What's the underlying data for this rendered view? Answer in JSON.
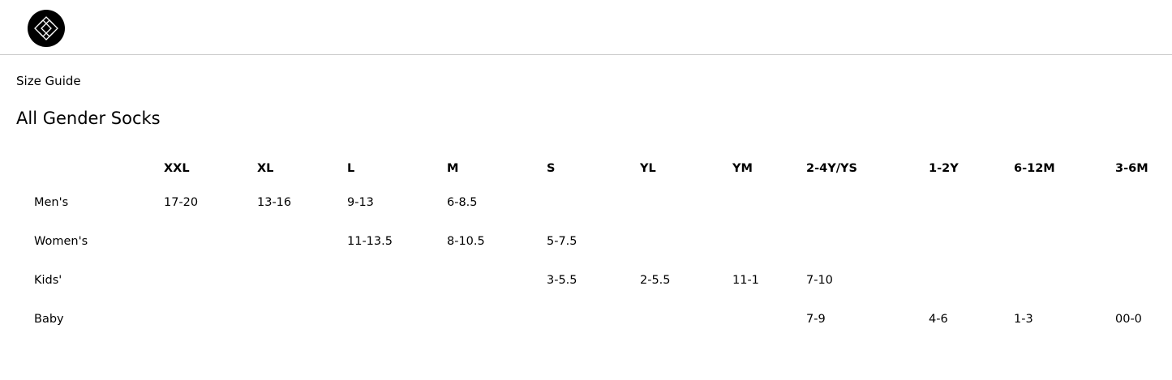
{
  "breadcrumb": "Size Guide",
  "title": "All Gender Socks",
  "columns": [
    "",
    "XXL",
    "XL",
    "L",
    "M",
    "S",
    "YL",
    "YM",
    "2-4Y/YS",
    "1-2Y",
    "6-12M",
    "3-6M"
  ],
  "rows": [
    [
      "Men's",
      "17-20",
      "13-16",
      "9-13",
      "6-8.5",
      "",
      "",
      "",
      "",
      "",
      "",
      ""
    ],
    [
      "Women's",
      "",
      "",
      "11-13.5",
      "8-10.5",
      "5-7.5",
      "",
      "",
      "",
      "",
      "",
      ""
    ],
    [
      "Kids'",
      "",
      "",
      "",
      "",
      "3-5.5",
      "2-5.5",
      "11-1",
      "7-10",
      "",
      "",
      ""
    ],
    [
      "Baby",
      "",
      "",
      "",
      "",
      "",
      "",
      "",
      "7-9",
      "4-6",
      "1-3",
      "00-0"
    ]
  ]
}
